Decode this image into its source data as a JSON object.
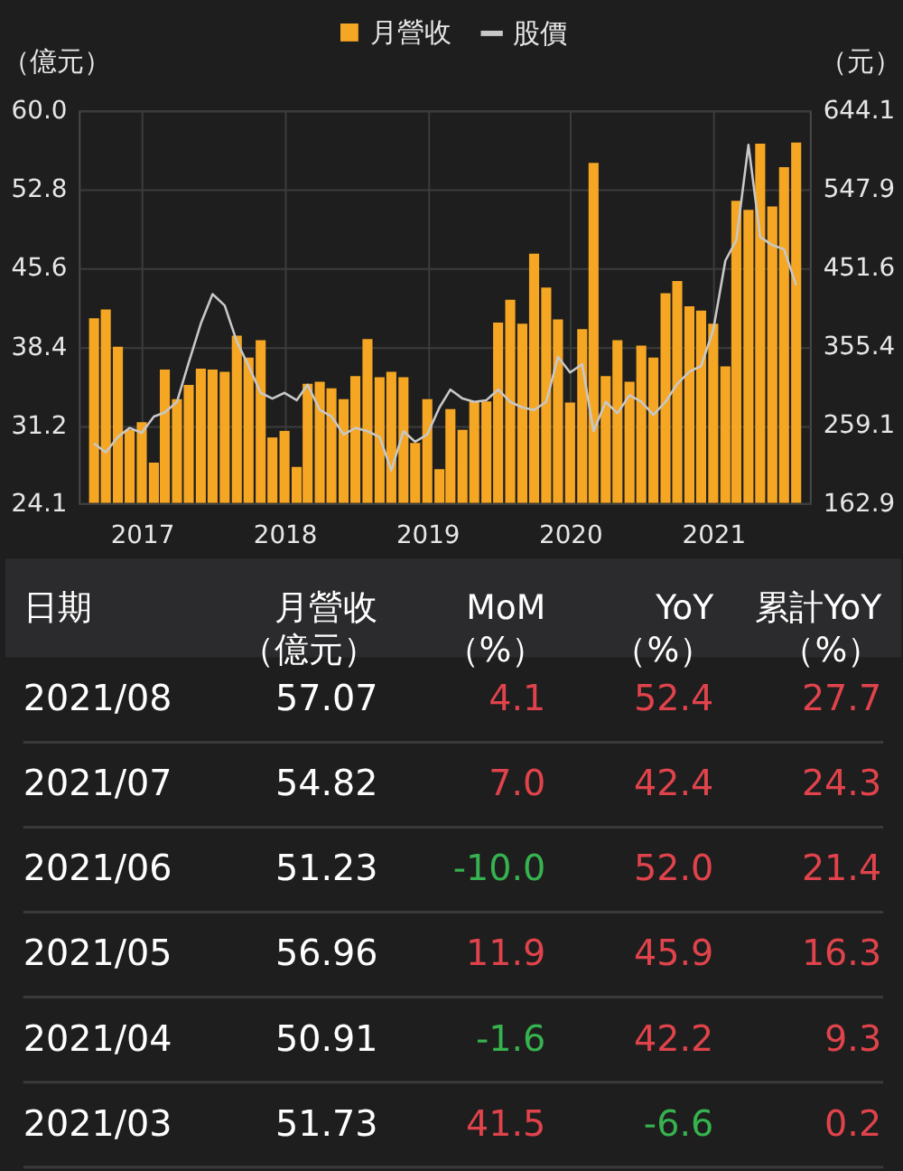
{
  "chart_data": [
    {
      "type": "bar",
      "legend": "top",
      "grid": true,
      "ylabel": "（億元）",
      "y2label": "（元）",
      "x": [
        "2016-09",
        "2016-10",
        "2016-11",
        "2016-12",
        "2017-01",
        "2017-02",
        "2017-03",
        "2017-04",
        "2017-05",
        "2017-06",
        "2017-07",
        "2017-08",
        "2017-09",
        "2017-10",
        "2017-11",
        "2017-12",
        "2018-01",
        "2018-02",
        "2018-03",
        "2018-04",
        "2018-05",
        "2018-06",
        "2018-07",
        "2018-08",
        "2018-09",
        "2018-10",
        "2018-11",
        "2018-12",
        "2019-01",
        "2019-02",
        "2019-03",
        "2019-04",
        "2019-05",
        "2019-06",
        "2019-07",
        "2019-08",
        "2019-09",
        "2019-10",
        "2019-11",
        "2019-12",
        "2020-01",
        "2020-02",
        "2020-03",
        "2020-04",
        "2020-05",
        "2020-06",
        "2020-07",
        "2020-08",
        "2020-09",
        "2020-10",
        "2020-11",
        "2020-12",
        "2021-01",
        "2021-02",
        "2021-03",
        "2021-04",
        "2021-05",
        "2021-06",
        "2021-07",
        "2021-08"
      ],
      "xlim": [
        "2016-08-16",
        "2021-08-13"
      ],
      "xticks": [
        "2017",
        "2018",
        "2019",
        "2020",
        "2021"
      ],
      "ylim": [
        24.1,
        60
      ],
      "yticks": [
        24.1,
        31.2,
        38.4,
        45.6,
        52.8,
        {
          "value": 60,
          "label": "60.0"
        }
      ],
      "y2lim": [
        162.9,
        644.1
      ],
      "y2ticks": [
        162.9,
        259.1,
        355.4,
        451.6,
        547.9,
        644.1
      ],
      "series": [
        {
          "name": "月營收",
          "type": "bar",
          "color": "#f5a623",
          "values": [
            41.0,
            41.8,
            38.4,
            30.8,
            31.5,
            27.8,
            36.3,
            33.6,
            34.9,
            36.4,
            36.3,
            36.1,
            39.4,
            37.4,
            39.0,
            30.1,
            30.7,
            27.4,
            35.0,
            35.2,
            34.6,
            33.6,
            35.7,
            39.1,
            35.6,
            36.1,
            35.6,
            29.6,
            33.6,
            27.2,
            32.7,
            30.8,
            33.4,
            33.4,
            40.6,
            42.7,
            40.5,
            46.9,
            43.8,
            40.9,
            33.3,
            40.0,
            55.2,
            35.7,
            39.0,
            35.2,
            38.5,
            37.4,
            43.3,
            44.4,
            42.1,
            41.7,
            40.5,
            36.6,
            51.73,
            50.91,
            56.96,
            51.23,
            54.82,
            57.07
          ]
        },
        {
          "name": "股價",
          "type": "line",
          "axis": "y2",
          "color": "#c8c8c8",
          "values": [
            236,
            225,
            244,
            255,
            249,
            269,
            274,
            287,
            335,
            383,
            419,
            405,
            361,
            331,
            298,
            291,
            298,
            289,
            308,
            277,
            269,
            247,
            255,
            251,
            244,
            203,
            251,
            238,
            247,
            280,
            302,
            291,
            287,
            289,
            302,
            287,
            280,
            277,
            287,
            342,
            323,
            333,
            251,
            287,
            273,
            295,
            287,
            271,
            287,
            309,
            324,
            331,
            375,
            460,
            485,
            602,
            489,
            479,
            474,
            430
          ]
        }
      ]
    },
    {
      "type": "other",
      "ylabel": "日期",
      "categories": [
        "月營收（億元）",
        "MoM\n（%）",
        "YoY\n（%）",
        "累計YoY\n（%）"
      ],
      "y_categories": [
        "2021/08",
        "2021/07",
        "2021/06",
        "2021/05",
        "2021/04",
        "2021/03"
      ],
      "cell_labels": [
        [
          "57.07",
          "4.1",
          "52.4",
          "27.7"
        ],
        [
          "54.82",
          "7.0",
          "42.4",
          "24.3"
        ],
        [
          "51.23",
          "-10.0",
          "52.0",
          "21.4"
        ],
        [
          "56.96",
          "11.9",
          "45.9",
          "16.3"
        ],
        [
          "50.91",
          "-1.6",
          "42.2",
          "9.3"
        ],
        [
          "51.73",
          "41.5",
          "-6.6",
          "0.2"
        ]
      ],
      "colors": [
        [
          "#ffffff",
          "#e0434b",
          "#e0434b",
          "#e0434b"
        ],
        [
          "#ffffff",
          "#e0434b",
          "#e0434b",
          "#e0434b"
        ],
        [
          "#ffffff",
          "#36b24e",
          "#e0434b",
          "#e0434b"
        ],
        [
          "#ffffff",
          "#e0434b",
          "#e0434b",
          "#e0434b"
        ],
        [
          "#ffffff",
          "#36b24e",
          "#e0434b",
          "#e0434b"
        ],
        [
          "#ffffff",
          "#e0434b",
          "#36b24e",
          "#e0434b"
        ]
      ]
    }
  ]
}
